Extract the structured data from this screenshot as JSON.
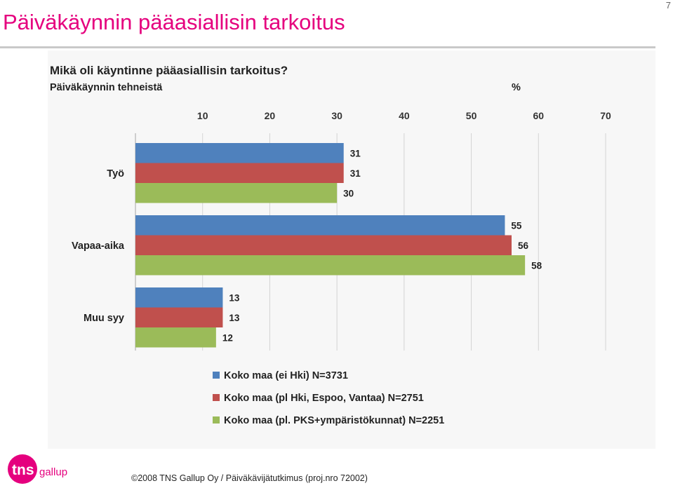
{
  "slide": {
    "title": "Päiväkäynnin pääasiallisin tarkoitus",
    "page_number": "7",
    "footer": "©2008 TNS Gallup Oy / Päiväkävijätutkimus (proj.nro 72002)",
    "logo_text": "tns gallup"
  },
  "chart_data": {
    "type": "bar",
    "orientation": "horizontal",
    "title": "Mikä oli käyntinne pääasiallisin tarkoitus?",
    "subtitle": "Päiväkäynnin tehneistä",
    "unit": "%",
    "categories": [
      "Työ",
      "Vapaa-aika",
      "Muu syy"
    ],
    "series": [
      {
        "name": "Koko maa (ei Hki) N=3731",
        "color": "#4f81bd",
        "values": [
          31,
          55,
          13
        ]
      },
      {
        "name": "Koko maa (pl Hki, Espoo, Vantaa) N=2751",
        "color": "#c0504d",
        "values": [
          31,
          56,
          13
        ]
      },
      {
        "name": "Koko maa (pl. PKS+ympäristökunnat) N=2251",
        "color": "#9bbb59",
        "values": [
          30,
          58,
          12
        ]
      }
    ],
    "xlim": [
      0,
      70
    ],
    "xticks": [
      10,
      20,
      30,
      40,
      50,
      60,
      70
    ],
    "grid": true,
    "axis_position": "top",
    "legend_position": "bottom"
  }
}
